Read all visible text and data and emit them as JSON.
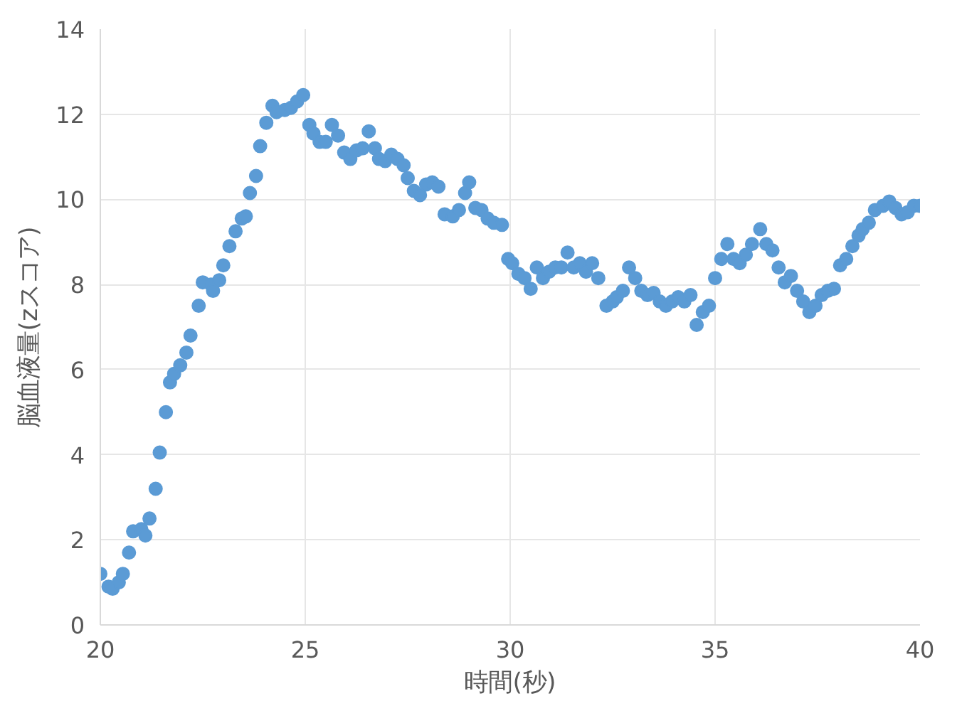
{
  "chart_data": {
    "type": "scatter",
    "xlabel": "時間(秒)",
    "ylabel": "脳血液量(zスコア)",
    "xlim": [
      20,
      40
    ],
    "ylim": [
      0,
      14
    ],
    "xticks": [
      20,
      25,
      30,
      35,
      40
    ],
    "yticks": [
      0,
      2,
      4,
      6,
      8,
      10,
      12,
      14
    ],
    "grid": true,
    "marker": "circle",
    "series": [
      {
        "color": "#5b9bd5",
        "x": [
          20.0,
          20.2,
          20.3,
          20.45,
          20.55,
          20.7,
          20.8,
          21.0,
          21.1,
          21.2,
          21.35,
          21.45,
          21.6,
          21.7,
          21.8,
          21.95,
          22.1,
          22.2,
          22.4,
          22.5,
          22.7,
          22.75,
          22.9,
          23.0,
          23.15,
          23.3,
          23.45,
          23.55,
          23.65,
          23.8,
          23.9,
          24.05,
          24.2,
          24.3,
          24.5,
          24.65,
          24.8,
          24.95,
          25.1,
          25.2,
          25.35,
          25.5,
          25.65,
          25.8,
          25.95,
          26.1,
          26.25,
          26.4,
          26.55,
          26.7,
          26.8,
          26.95,
          27.1,
          27.25,
          27.4,
          27.5,
          27.65,
          27.8,
          27.95,
          28.1,
          28.25,
          28.4,
          28.6,
          28.75,
          28.9,
          29.0,
          29.15,
          29.3,
          29.45,
          29.6,
          29.8,
          29.95,
          30.05,
          30.2,
          30.35,
          30.5,
          30.65,
          30.8,
          30.95,
          31.1,
          31.25,
          31.4,
          31.55,
          31.7,
          31.85,
          32.0,
          32.15,
          32.35,
          32.5,
          32.6,
          32.75,
          32.9,
          33.05,
          33.2,
          33.35,
          33.5,
          33.65,
          33.8,
          33.95,
          34.1,
          34.25,
          34.4,
          34.55,
          34.7,
          34.85,
          35.0,
          35.15,
          35.3,
          35.45,
          35.6,
          35.75,
          35.9,
          36.1,
          36.25,
          36.4,
          36.55,
          36.7,
          36.85,
          37.0,
          37.15,
          37.3,
          37.45,
          37.6,
          37.75,
          37.9,
          38.05,
          38.2,
          38.35,
          38.5,
          38.6,
          38.75,
          38.9,
          39.1,
          39.25,
          39.4,
          39.55,
          39.7,
          39.85,
          40.0
        ],
        "values": [
          1.2,
          0.9,
          0.85,
          1.0,
          1.2,
          1.7,
          2.2,
          2.25,
          2.1,
          2.5,
          3.2,
          4.05,
          5.0,
          5.7,
          5.9,
          6.1,
          6.4,
          6.8,
          7.5,
          8.05,
          8.0,
          7.85,
          8.1,
          8.45,
          8.9,
          9.25,
          9.55,
          9.6,
          10.15,
          10.55,
          11.25,
          11.8,
          12.2,
          12.05,
          12.1,
          12.15,
          12.3,
          12.45,
          11.75,
          11.55,
          11.35,
          11.35,
          11.75,
          11.5,
          11.1,
          10.95,
          11.15,
          11.2,
          11.6,
          11.2,
          10.95,
          10.9,
          11.05,
          10.95,
          10.8,
          10.5,
          10.2,
          10.1,
          10.35,
          10.4,
          10.3,
          9.65,
          9.6,
          9.75,
          10.15,
          10.4,
          9.8,
          9.75,
          9.55,
          9.45,
          9.4,
          8.6,
          8.5,
          8.25,
          8.15,
          7.9,
          8.4,
          8.15,
          8.3,
          8.4,
          8.4,
          8.75,
          8.4,
          8.5,
          8.3,
          8.5,
          8.15,
          7.5,
          7.6,
          7.7,
          7.85,
          8.4,
          8.15,
          7.85,
          7.75,
          7.8,
          7.6,
          7.5,
          7.6,
          7.7,
          7.6,
          7.75,
          7.05,
          7.35,
          7.5,
          8.15,
          8.6,
          8.95,
          8.6,
          8.5,
          8.7,
          8.95,
          9.3,
          8.95,
          8.8,
          8.4,
          8.05,
          8.2,
          7.85,
          7.6,
          7.35,
          7.5,
          7.75,
          7.85,
          7.9,
          8.45,
          8.6,
          8.9,
          9.15,
          9.3,
          9.45,
          9.75,
          9.85,
          9.95,
          9.8,
          9.65,
          9.7,
          9.85,
          9.85
        ]
      }
    ]
  }
}
